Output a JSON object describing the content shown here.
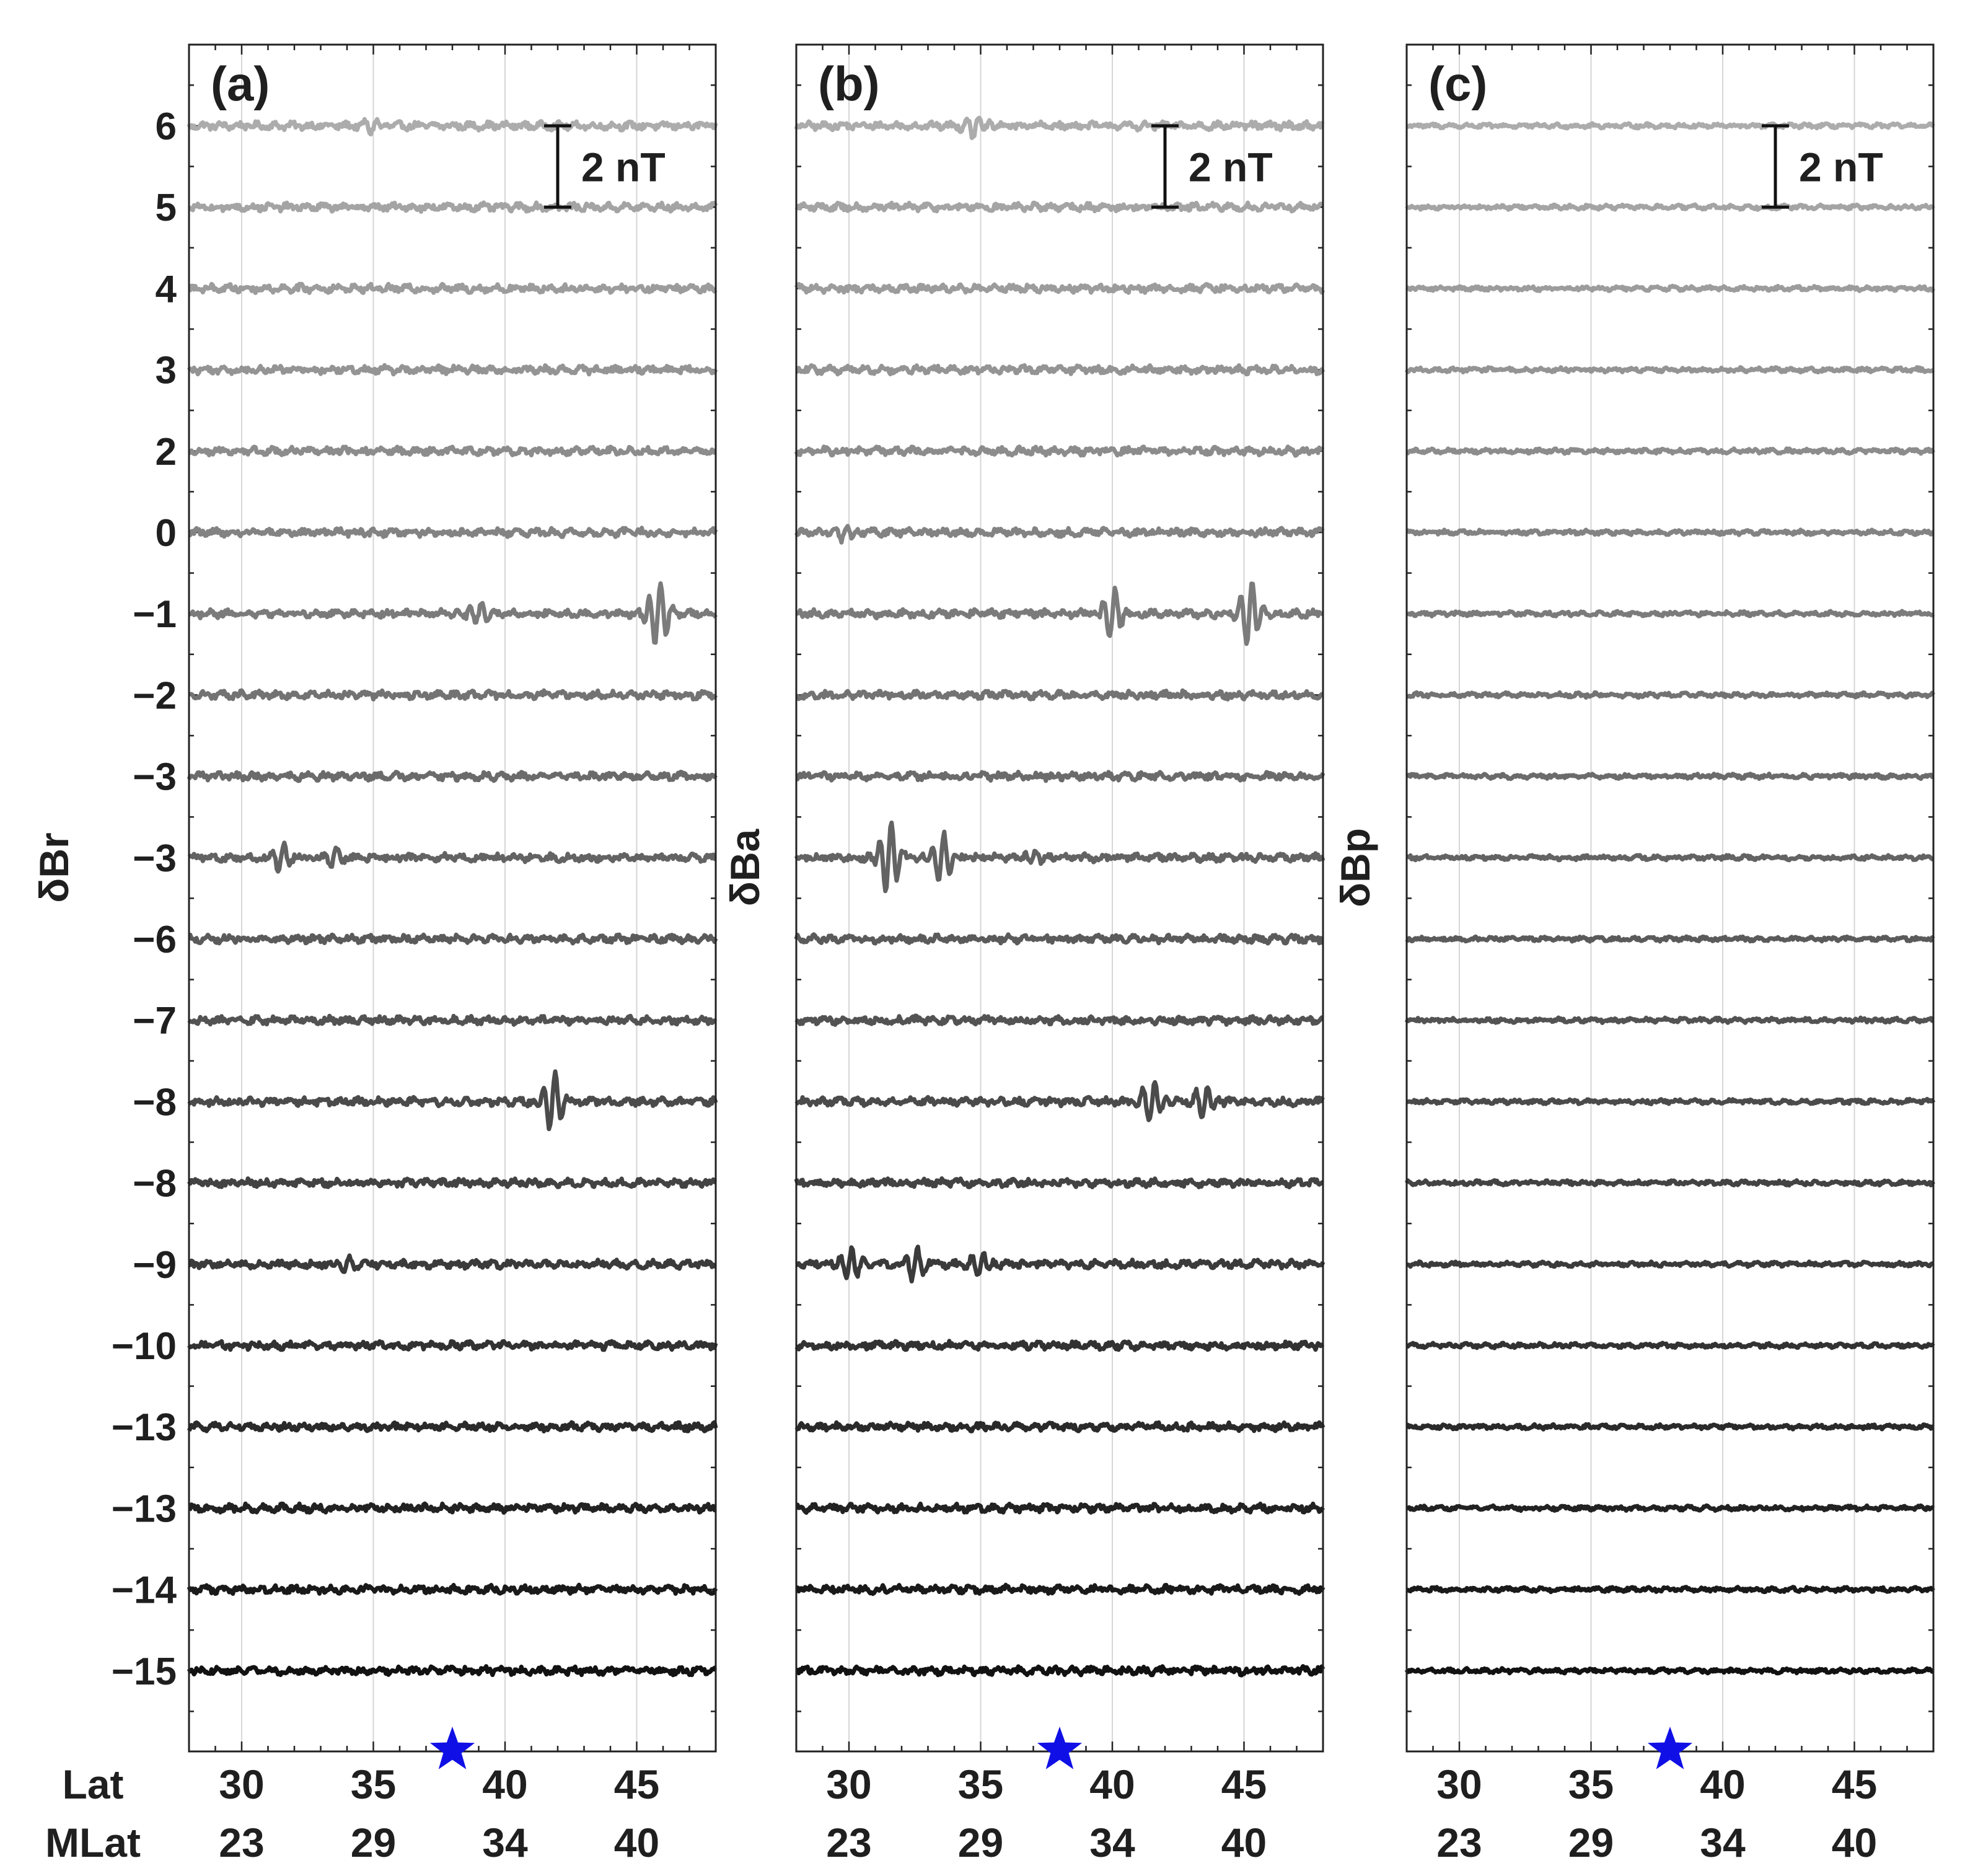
{
  "colors": {
    "star": "#1010e6",
    "frame": "#222222",
    "grid": "#d6d6d6",
    "text": "#1f1f1f",
    "scale_bar": "#111111"
  },
  "chart_data": [
    {
      "type": "line",
      "panel_label": "(a)",
      "ylabel": "δBr",
      "scale_bar_label": "2 nT",
      "scale_bar_nT": 2,
      "xlim": [
        28,
        48
      ],
      "x_ticks": [
        30,
        35,
        40,
        45
      ],
      "mlat_ticks": [
        23,
        29,
        34,
        40
      ],
      "x_axis_labels": [
        "Lat",
        "MLat"
      ],
      "star_lat": 38,
      "grid": "vertical",
      "trace_labels": [
        "6",
        "5",
        "4",
        "3",
        "2",
        "0",
        "−1",
        "−2",
        "−3",
        "−3",
        "−6",
        "−7",
        "−8",
        "−8",
        "−9",
        "−10",
        "−13",
        "−13",
        "−14",
        "−15"
      ],
      "disturbances": [
        {
          "trace": 0,
          "lat": 35.0,
          "amp_nT": 0.15
        },
        {
          "trace": 6,
          "lat": 39.0,
          "amp_nT": 0.3
        },
        {
          "trace": 6,
          "lat": 45.8,
          "amp_nT": 0.8
        },
        {
          "trace": 9,
          "lat": 31.5,
          "amp_nT": 0.3
        },
        {
          "trace": 9,
          "lat": 33.5,
          "amp_nT": 0.2
        },
        {
          "trace": 12,
          "lat": 41.8,
          "amp_nT": 0.7
        },
        {
          "trace": 14,
          "lat": 34.0,
          "amp_nT": 0.15
        }
      ]
    },
    {
      "type": "line",
      "panel_label": "(b)",
      "ylabel": "δBa",
      "scale_bar_label": "2 nT",
      "scale_bar_nT": 2,
      "xlim": [
        28,
        48
      ],
      "x_ticks": [
        30,
        35,
        40,
        45
      ],
      "mlat_ticks": [
        23,
        29,
        34,
        40
      ],
      "x_axis_labels": [],
      "star_lat": 38,
      "grid": "vertical",
      "trace_labels": [],
      "disturbances": [
        {
          "trace": 0,
          "lat": 34.8,
          "amp_nT": 0.3
        },
        {
          "trace": 5,
          "lat": 29.8,
          "amp_nT": 0.2
        },
        {
          "trace": 6,
          "lat": 40.0,
          "amp_nT": 0.6
        },
        {
          "trace": 6,
          "lat": 45.2,
          "amp_nT": 0.8
        },
        {
          "trace": 9,
          "lat": 31.5,
          "amp_nT": 0.9
        },
        {
          "trace": 9,
          "lat": 33.5,
          "amp_nT": 0.6
        },
        {
          "trace": 9,
          "lat": 37.0,
          "amp_nT": 0.2
        },
        {
          "trace": 12,
          "lat": 41.5,
          "amp_nT": 0.5
        },
        {
          "trace": 12,
          "lat": 43.5,
          "amp_nT": 0.4
        },
        {
          "trace": 14,
          "lat": 30.0,
          "amp_nT": 0.4
        },
        {
          "trace": 14,
          "lat": 32.5,
          "amp_nT": 0.35
        },
        {
          "trace": 14,
          "lat": 35.0,
          "amp_nT": 0.3
        }
      ]
    },
    {
      "type": "line",
      "panel_label": "(c)",
      "ylabel": "δBp",
      "scale_bar_label": "2 nT",
      "scale_bar_nT": 2,
      "xlim": [
        28,
        48
      ],
      "x_ticks": [
        30,
        35,
        40,
        45
      ],
      "mlat_ticks": [
        23,
        29,
        34,
        40
      ],
      "x_axis_labels": [],
      "star_lat": 38,
      "grid": "vertical",
      "trace_labels": [],
      "disturbances": []
    }
  ]
}
